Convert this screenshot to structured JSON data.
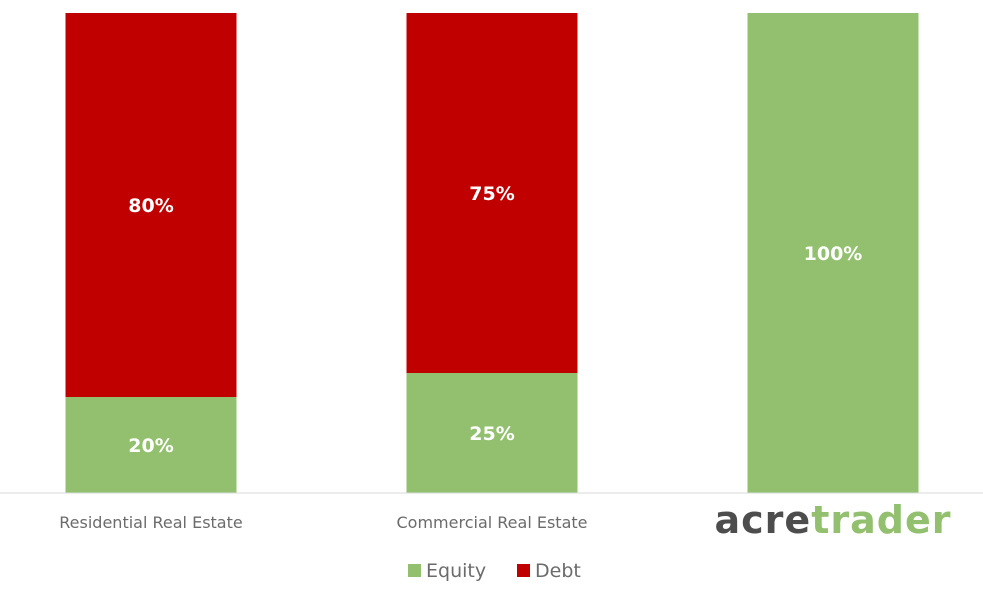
{
  "chart_data": {
    "type": "bar",
    "stacked": true,
    "categories": [
      "Residential Real Estate",
      "Commercial Real Estate",
      ""
    ],
    "series": [
      {
        "name": "Equity",
        "values": [
          20,
          25,
          100
        ],
        "color": "#92c06e"
      },
      {
        "name": "Debt",
        "values": [
          80,
          75,
          0
        ],
        "color": "#c00000"
      }
    ],
    "data_labels": [
      [
        "20%",
        "25%",
        "100%"
      ],
      [
        "80%",
        "75%",
        ""
      ]
    ],
    "ylim": [
      0,
      100
    ],
    "grid": false,
    "legend_position": "bottom"
  },
  "logo": {
    "part1": "acre",
    "part2": "trader",
    "color1": "#4d4d4d",
    "color2": "#92c06e"
  }
}
